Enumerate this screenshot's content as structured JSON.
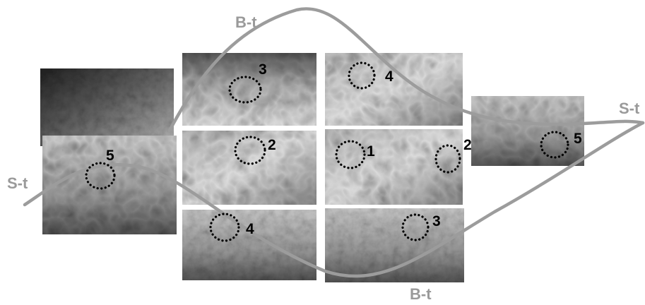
{
  "curve_labels": [
    "B-t",
    "B-t",
    "S-t",
    "S-t"
  ],
  "region_numbers": [
    "3",
    "4",
    "2",
    "1",
    "2",
    "5",
    "5",
    "4",
    "3"
  ]
}
